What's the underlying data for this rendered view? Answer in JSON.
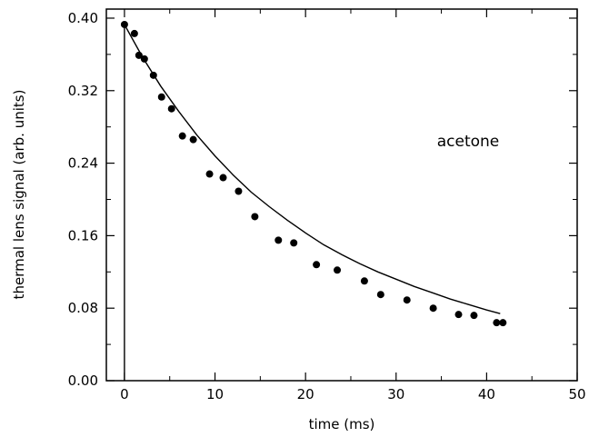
{
  "chart_data": {
    "type": "scatter",
    "xlabel": "time (ms)",
    "ylabel": "thermal lens signal (arb. units)",
    "xlim": [
      -2,
      50
    ],
    "ylim": [
      0,
      0.41
    ],
    "x_ticks": [
      0,
      10,
      20,
      30,
      40,
      50
    ],
    "y_ticks": [
      0.0,
      0.08,
      0.16,
      0.24,
      0.32,
      0.4
    ],
    "x_tick_labels": [
      "0",
      "10",
      "20",
      "30",
      "40",
      "50"
    ],
    "y_tick_labels": [
      "0.00",
      "0.08",
      "0.16",
      "0.24",
      "0.32",
      "0.40"
    ],
    "annotation": "acetone",
    "grid": false,
    "series": [
      {
        "kind": "points",
        "x": [
          0.0,
          1.1,
          1.6,
          2.2,
          3.2,
          4.1,
          5.2,
          6.4,
          7.6,
          9.4,
          10.9,
          12.6,
          14.4,
          17.0,
          18.7,
          21.2,
          23.5,
          26.5,
          28.3,
          31.2,
          34.1,
          36.9,
          38.6,
          41.1,
          41.8
        ],
        "y": [
          0.393,
          0.383,
          0.359,
          0.355,
          0.337,
          0.313,
          0.3,
          0.27,
          0.266,
          0.228,
          0.224,
          0.209,
          0.181,
          0.155,
          0.152,
          0.128,
          0.122,
          0.11,
          0.095,
          0.089,
          0.08,
          0.073,
          0.072,
          0.064,
          0.064
        ]
      },
      {
        "kind": "fit-line",
        "x": [
          0,
          2,
          4,
          6,
          8,
          10,
          12,
          14,
          16,
          18,
          20,
          22,
          24,
          26,
          28,
          30,
          32,
          34,
          36,
          38,
          40,
          41.5
        ],
        "y": [
          0.393,
          0.357,
          0.325,
          0.297,
          0.271,
          0.248,
          0.227,
          0.208,
          0.192,
          0.177,
          0.163,
          0.15,
          0.139,
          0.129,
          0.12,
          0.112,
          0.104,
          0.097,
          0.09,
          0.084,
          0.078,
          0.074
        ]
      },
      {
        "kind": "vertical-rise",
        "x": [
          0,
          0
        ],
        "y": [
          0,
          0.393
        ]
      }
    ]
  }
}
